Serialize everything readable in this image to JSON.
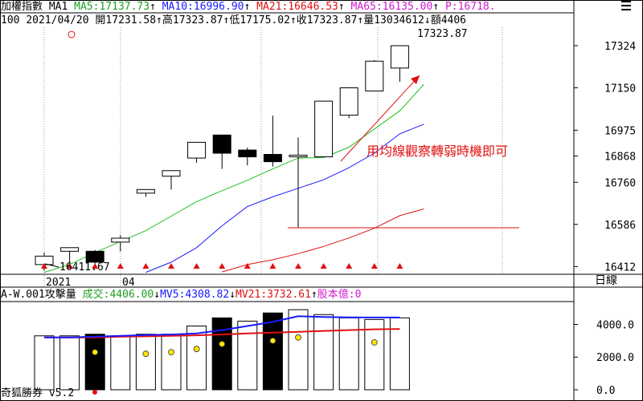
{
  "header": {
    "title": "加權指數",
    "ma_tag": "MA1",
    "ma5": "MA5:17137.73",
    "ma10": "MA10:16996.90",
    "ma21": "MA21:16646.53",
    "ma65": "MA65:16135.00",
    "p": "P:16718.",
    "row2_prefix": "100",
    "date": "2021/04/20",
    "open": "開17231.58",
    "high": "高17323.87",
    "low": "低17175.02",
    "close": "收17323.87",
    "qty": "量13034612",
    "amount": "額4406"
  },
  "sub_header": {
    "prefix": "A-W.001",
    "title": "攻擊量",
    "vol": "成交:4406.00",
    "mv5": "MV5:4308.82",
    "mv21": "MV21:3732.61",
    "unit": "股本億:0"
  },
  "footer": {
    "app": "奇狐勝券",
    "version": "v5.2"
  },
  "period_label": "日線",
  "colors": {
    "ma5": "#1fc21f",
    "ma10": "#1a1aff",
    "ma21": "#e01010",
    "annotation": "#e01010",
    "mv5": "#1a1aff",
    "mv21": "#e01010"
  },
  "chart_data": [
    {
      "type": "candlestick",
      "y_ticks": [
        17324,
        17150,
        16975,
        16868,
        16760,
        16586,
        16412
      ],
      "x_tick_labels": [
        "2021",
        "04"
      ],
      "ohlc": [
        {
          "o": 16420,
          "h": 16470,
          "l": 16395,
          "c": 16455
        },
        {
          "o": 16475,
          "h": 16490,
          "l": 16420,
          "c": 16490
        },
        {
          "o": 16475,
          "h": 16480,
          "l": 16420,
          "c": 16430
        },
        {
          "o": 16513,
          "h": 16541,
          "l": 16475,
          "c": 16529
        },
        {
          "o": 16715,
          "h": 16725,
          "l": 16700,
          "c": 16730
        },
        {
          "o": 16785,
          "h": 16805,
          "l": 16730,
          "c": 16808
        },
        {
          "o": 16860,
          "h": 16925,
          "l": 16840,
          "c": 16925
        },
        {
          "o": 16955,
          "h": 16955,
          "l": 16815,
          "c": 16880
        },
        {
          "o": 16893,
          "h": 16903,
          "l": 16830,
          "c": 16865
        },
        {
          "o": 16875,
          "h": 17035,
          "l": 16825,
          "c": 16845
        },
        {
          "o": 16865,
          "h": 16945,
          "l": 16572,
          "c": 16872
        },
        {
          "o": 16865,
          "h": 17095,
          "l": 16865,
          "c": 17095
        },
        {
          "o": 17037,
          "h": 17150,
          "l": 17025,
          "c": 17150
        },
        {
          "o": 17137,
          "h": 17265,
          "l": 17137,
          "c": 17260
        },
        {
          "o": 17231.58,
          "h": 17323.87,
          "l": 17175.02,
          "c": 17323.87
        }
      ],
      "ma5": [
        16388,
        16420,
        16470,
        16515,
        16560,
        16620,
        16680,
        16725,
        16768,
        16815,
        16860,
        16862,
        16905,
        16980,
        17055
      ],
      "ma10": [
        null,
        null,
        null,
        null,
        16388,
        16430,
        16490,
        16580,
        16660,
        16700,
        16735,
        16770,
        16820,
        16880,
        16960
      ],
      "ma21": [
        null,
        null,
        null,
        null,
        null,
        null,
        null,
        16390,
        16420,
        16440,
        16465,
        16495,
        16530,
        16570,
        16622
      ],
      "markers": [
        0,
        1,
        2,
        3,
        4,
        5,
        6,
        7,
        8,
        9,
        10,
        11,
        12,
        13,
        14
      ],
      "annotations": {
        "low_label": "16411.67",
        "high_label": "17323.87",
        "note": "用均線觀察轉弱時機即可"
      },
      "support_level": 16572
    },
    {
      "type": "bar",
      "y_ticks": [
        4000.0,
        2000.0,
        0.0
      ],
      "y_tick_labels": [
        "4000.0",
        "2000.0",
        "0.0"
      ],
      "volume": [
        3300,
        3300,
        3400,
        3300,
        3400,
        3400,
        3900,
        4400,
        4200,
        4700,
        4900,
        4600,
        4400,
        4300,
        4400
      ],
      "filled": [
        false,
        false,
        true,
        false,
        false,
        false,
        false,
        true,
        false,
        true,
        false,
        false,
        false,
        false,
        false
      ],
      "dots": [
        null,
        null,
        2300,
        null,
        2200,
        2300,
        2500,
        2800,
        null,
        3000,
        3200,
        null,
        null,
        2900,
        null
      ],
      "mv5": [
        3200,
        3200,
        3250,
        3300,
        3350,
        3380,
        3450,
        3650,
        3900,
        4150,
        4500,
        4450,
        4430,
        4420,
        4420
      ],
      "mv21": [
        3200,
        3200,
        3200,
        3250,
        3270,
        3300,
        3330,
        3380,
        3450,
        3500,
        3550,
        3600,
        3650,
        3700,
        3720
      ]
    }
  ]
}
